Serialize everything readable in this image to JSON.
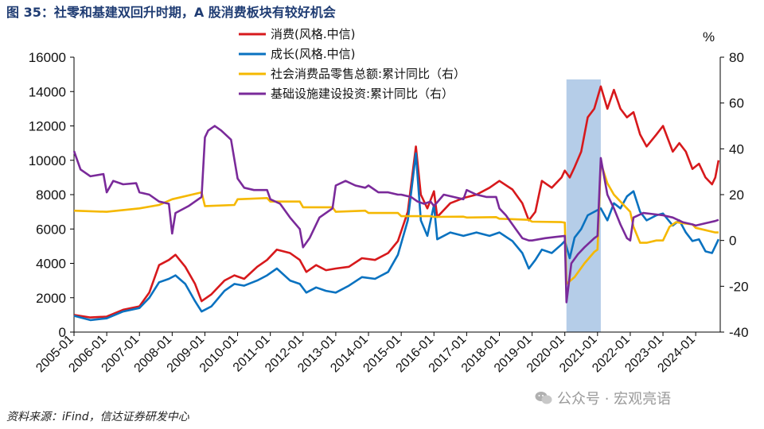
{
  "title": "图 35：社零和基建双回升时期，A 股消费板块有较好机会",
  "source": "资料来源：iFind，信达证券研发中心",
  "watermark": "公众号 · 宏观亮语",
  "chart_data": {
    "type": "line",
    "title": "图 35：社零和基建双回升时期，A 股消费板块有较好机会",
    "y_left": {
      "lim": [
        0,
        16000
      ],
      "ticks": [
        "0",
        "2000",
        "4000",
        "6000",
        "8000",
        "10000",
        "12000",
        "14000",
        "16000"
      ]
    },
    "y_right": {
      "label": "%",
      "lim": [
        -40,
        80
      ],
      "ticks": [
        "-40",
        "-20",
        "0",
        "20",
        "40",
        "60",
        "80"
      ]
    },
    "x_ticks": [
      "2005-01",
      "2006-01",
      "2007-01",
      "2008-01",
      "2009-01",
      "2010-01",
      "2011-01",
      "2012-01",
      "2013-01",
      "2014-01",
      "2015-01",
      "2016-01",
      "2017-01",
      "2018-01",
      "2019-01",
      "2020-01",
      "2021-01",
      "2022-01",
      "2023-01",
      "2024-01"
    ],
    "shaded_region": {
      "from": 2020.05,
      "to": 2021.1,
      "color": "#a8c4e4"
    },
    "series": [
      {
        "name": "消费(风格.中信)",
        "axis": "left",
        "color": "#d7191c",
        "points": [
          [
            2005.0,
            1000
          ],
          [
            2005.5,
            850
          ],
          [
            2006.0,
            900
          ],
          [
            2006.5,
            1300
          ],
          [
            2007.0,
            1500
          ],
          [
            2007.3,
            2300
          ],
          [
            2007.6,
            3900
          ],
          [
            2007.9,
            4200
          ],
          [
            2008.1,
            4500
          ],
          [
            2008.4,
            3800
          ],
          [
            2008.7,
            2800
          ],
          [
            2008.9,
            1800
          ],
          [
            2009.2,
            2200
          ],
          [
            2009.6,
            3000
          ],
          [
            2009.9,
            3300
          ],
          [
            2010.2,
            3100
          ],
          [
            2010.6,
            3800
          ],
          [
            2010.9,
            4200
          ],
          [
            2011.2,
            4800
          ],
          [
            2011.6,
            4600
          ],
          [
            2011.9,
            4200
          ],
          [
            2012.1,
            3500
          ],
          [
            2012.4,
            3900
          ],
          [
            2012.7,
            3600
          ],
          [
            2013.0,
            3700
          ],
          [
            2013.4,
            3800
          ],
          [
            2013.8,
            4300
          ],
          [
            2014.2,
            4200
          ],
          [
            2014.6,
            4600
          ],
          [
            2014.9,
            5300
          ],
          [
            2015.2,
            7000
          ],
          [
            2015.45,
            10800
          ],
          [
            2015.6,
            8000
          ],
          [
            2015.8,
            7200
          ],
          [
            2016.0,
            8200
          ],
          [
            2016.1,
            6700
          ],
          [
            2016.5,
            7500
          ],
          [
            2016.9,
            7800
          ],
          [
            2017.3,
            8000
          ],
          [
            2017.7,
            8400
          ],
          [
            2018.0,
            8800
          ],
          [
            2018.4,
            8300
          ],
          [
            2018.7,
            7500
          ],
          [
            2018.9,
            6500
          ],
          [
            2019.1,
            7000
          ],
          [
            2019.3,
            8800
          ],
          [
            2019.6,
            8400
          ],
          [
            2019.9,
            9000
          ],
          [
            2020.0,
            9400
          ],
          [
            2020.15,
            9000
          ],
          [
            2020.3,
            9600
          ],
          [
            2020.5,
            10500
          ],
          [
            2020.7,
            12500
          ],
          [
            2020.9,
            13000
          ],
          [
            2021.1,
            14300
          ],
          [
            2021.3,
            13000
          ],
          [
            2021.5,
            14100
          ],
          [
            2021.7,
            13000
          ],
          [
            2021.9,
            12500
          ],
          [
            2022.1,
            12800
          ],
          [
            2022.3,
            11500
          ],
          [
            2022.5,
            10800
          ],
          [
            2022.8,
            11500
          ],
          [
            2023.0,
            12000
          ],
          [
            2023.3,
            10500
          ],
          [
            2023.5,
            11000
          ],
          [
            2023.7,
            10500
          ],
          [
            2023.9,
            9500
          ],
          [
            2024.1,
            9800
          ],
          [
            2024.3,
            9000
          ],
          [
            2024.5,
            8600
          ],
          [
            2024.6,
            9000
          ],
          [
            2024.7,
            10000
          ]
        ]
      },
      {
        "name": "成长(风格.中信)",
        "axis": "left",
        "color": "#0a72c0",
        "points": [
          [
            2005.0,
            950
          ],
          [
            2005.5,
            700
          ],
          [
            2006.0,
            800
          ],
          [
            2006.5,
            1200
          ],
          [
            2007.0,
            1400
          ],
          [
            2007.3,
            2000
          ],
          [
            2007.6,
            2900
          ],
          [
            2007.9,
            3100
          ],
          [
            2008.1,
            3300
          ],
          [
            2008.4,
            2800
          ],
          [
            2008.7,
            1800
          ],
          [
            2008.9,
            1200
          ],
          [
            2009.2,
            1500
          ],
          [
            2009.6,
            2400
          ],
          [
            2009.9,
            2800
          ],
          [
            2010.2,
            2700
          ],
          [
            2010.6,
            3000
          ],
          [
            2010.9,
            3300
          ],
          [
            2011.2,
            3700
          ],
          [
            2011.6,
            3000
          ],
          [
            2011.9,
            2800
          ],
          [
            2012.1,
            2300
          ],
          [
            2012.4,
            2600
          ],
          [
            2012.7,
            2400
          ],
          [
            2013.0,
            2300
          ],
          [
            2013.4,
            2700
          ],
          [
            2013.8,
            3200
          ],
          [
            2014.2,
            3100
          ],
          [
            2014.6,
            3500
          ],
          [
            2014.9,
            4500
          ],
          [
            2015.2,
            6500
          ],
          [
            2015.45,
            10400
          ],
          [
            2015.6,
            6500
          ],
          [
            2015.8,
            5600
          ],
          [
            2016.0,
            7400
          ],
          [
            2016.1,
            5400
          ],
          [
            2016.5,
            5800
          ],
          [
            2016.9,
            5600
          ],
          [
            2017.3,
            5800
          ],
          [
            2017.7,
            5600
          ],
          [
            2018.0,
            5800
          ],
          [
            2018.4,
            5300
          ],
          [
            2018.7,
            4600
          ],
          [
            2018.9,
            3700
          ],
          [
            2019.1,
            4200
          ],
          [
            2019.3,
            4800
          ],
          [
            2019.6,
            4600
          ],
          [
            2019.9,
            5100
          ],
          [
            2020.0,
            5300
          ],
          [
            2020.15,
            4300
          ],
          [
            2020.3,
            5500
          ],
          [
            2020.5,
            6000
          ],
          [
            2020.7,
            6800
          ],
          [
            2020.9,
            7000
          ],
          [
            2021.1,
            7200
          ],
          [
            2021.3,
            6500
          ],
          [
            2021.5,
            7500
          ],
          [
            2021.7,
            7200
          ],
          [
            2021.9,
            7900
          ],
          [
            2022.1,
            8200
          ],
          [
            2022.3,
            7000
          ],
          [
            2022.5,
            6500
          ],
          [
            2022.8,
            6800
          ],
          [
            2023.0,
            6900
          ],
          [
            2023.3,
            6200
          ],
          [
            2023.5,
            6500
          ],
          [
            2023.7,
            5800
          ],
          [
            2023.9,
            5300
          ],
          [
            2024.1,
            5400
          ],
          [
            2024.3,
            4700
          ],
          [
            2024.5,
            4600
          ],
          [
            2024.6,
            5000
          ],
          [
            2024.7,
            5400
          ]
        ]
      },
      {
        "name": "社会消费品零售总额:累计同比（右）",
        "axis": "right",
        "color": "#f5b800",
        "points": [
          [
            2005.0,
            13
          ],
          [
            2006.0,
            12.5
          ],
          [
            2007.0,
            14
          ],
          [
            2007.6,
            15.5
          ],
          [
            2008.0,
            18
          ],
          [
            2008.9,
            21
          ],
          [
            2009.0,
            15
          ],
          [
            2009.9,
            15.5
          ],
          [
            2010.0,
            18
          ],
          [
            2010.9,
            18.5
          ],
          [
            2011.0,
            17
          ],
          [
            2011.9,
            17
          ],
          [
            2012.0,
            14.5
          ],
          [
            2012.9,
            14.5
          ],
          [
            2013.0,
            12.5
          ],
          [
            2013.9,
            13
          ],
          [
            2014.0,
            12
          ],
          [
            2014.9,
            12
          ],
          [
            2015.0,
            10.6
          ],
          [
            2015.9,
            10.6
          ],
          [
            2016.0,
            10.3
          ],
          [
            2016.9,
            10.4
          ],
          [
            2017.0,
            10
          ],
          [
            2017.9,
            10.2
          ],
          [
            2018.0,
            9.5
          ],
          [
            2018.9,
            9
          ],
          [
            2019.0,
            8.2
          ],
          [
            2019.9,
            8
          ],
          [
            2020.0,
            7.8
          ],
          [
            2020.05,
            -19
          ],
          [
            2020.3,
            -16
          ],
          [
            2020.6,
            -10
          ],
          [
            2020.9,
            -5
          ],
          [
            2021.0,
            -4
          ],
          [
            2021.1,
            34
          ],
          [
            2021.3,
            25
          ],
          [
            2021.5,
            20
          ],
          [
            2021.7,
            17
          ],
          [
            2021.9,
            14
          ],
          [
            2022.0,
            12.5
          ],
          [
            2022.1,
            6
          ],
          [
            2022.3,
            -1
          ],
          [
            2022.5,
            -1
          ],
          [
            2022.8,
            0
          ],
          [
            2023.0,
            0
          ],
          [
            2023.2,
            6
          ],
          [
            2023.4,
            8
          ],
          [
            2023.6,
            7.5
          ],
          [
            2023.9,
            7
          ],
          [
            2024.0,
            5.5
          ],
          [
            2024.3,
            4.5
          ],
          [
            2024.6,
            3.5
          ],
          [
            2024.7,
            3.5
          ]
        ]
      },
      {
        "name": "基础设施建设投资:累计同比（右）",
        "axis": "right",
        "color": "#7a2a9a",
        "points": [
          [
            2005.0,
            39
          ],
          [
            2005.2,
            31
          ],
          [
            2005.5,
            28
          ],
          [
            2005.9,
            29
          ],
          [
            2006.0,
            21
          ],
          [
            2006.2,
            26
          ],
          [
            2006.5,
            24.5
          ],
          [
            2006.9,
            25
          ],
          [
            2007.0,
            21
          ],
          [
            2007.3,
            20
          ],
          [
            2007.6,
            17
          ],
          [
            2007.9,
            16
          ],
          [
            2008.0,
            3
          ],
          [
            2008.1,
            12
          ],
          [
            2008.5,
            15
          ],
          [
            2008.9,
            19
          ],
          [
            2009.0,
            45
          ],
          [
            2009.1,
            48
          ],
          [
            2009.3,
            50
          ],
          [
            2009.5,
            48
          ],
          [
            2009.8,
            44
          ],
          [
            2010.0,
            27
          ],
          [
            2010.2,
            23
          ],
          [
            2010.5,
            22
          ],
          [
            2010.9,
            22
          ],
          [
            2011.0,
            18
          ],
          [
            2011.3,
            16
          ],
          [
            2011.6,
            10
          ],
          [
            2011.9,
            5
          ],
          [
            2012.0,
            -3
          ],
          [
            2012.2,
            1
          ],
          [
            2012.5,
            10
          ],
          [
            2012.9,
            14
          ],
          [
            2013.0,
            24
          ],
          [
            2013.3,
            26
          ],
          [
            2013.6,
            24
          ],
          [
            2013.9,
            23
          ],
          [
            2014.0,
            24
          ],
          [
            2014.3,
            21
          ],
          [
            2014.6,
            21
          ],
          [
            2014.9,
            20
          ],
          [
            2015.0,
            20
          ],
          [
            2015.3,
            19
          ],
          [
            2015.5,
            17
          ],
          [
            2015.7,
            16
          ],
          [
            2015.9,
            17
          ],
          [
            2016.0,
            15
          ],
          [
            2016.3,
            20
          ],
          [
            2016.6,
            19
          ],
          [
            2016.9,
            18
          ],
          [
            2017.0,
            22
          ],
          [
            2017.3,
            20
          ],
          [
            2017.6,
            19
          ],
          [
            2017.9,
            19
          ],
          [
            2018.0,
            14
          ],
          [
            2018.2,
            11
          ],
          [
            2018.5,
            5
          ],
          [
            2018.7,
            1
          ],
          [
            2018.9,
            0
          ],
          [
            2019.0,
            0
          ],
          [
            2019.4,
            1
          ],
          [
            2019.7,
            1.5
          ],
          [
            2020.0,
            2
          ],
          [
            2020.05,
            -27
          ],
          [
            2020.2,
            -10
          ],
          [
            2020.4,
            -6
          ],
          [
            2020.6,
            -3
          ],
          [
            2020.9,
            1
          ],
          [
            2021.0,
            2
          ],
          [
            2021.1,
            36
          ],
          [
            2021.3,
            20
          ],
          [
            2021.5,
            14
          ],
          [
            2021.7,
            7
          ],
          [
            2021.9,
            1
          ],
          [
            2022.0,
            0
          ],
          [
            2022.1,
            10
          ],
          [
            2022.4,
            12
          ],
          [
            2022.7,
            11.5
          ],
          [
            2023.0,
            11
          ],
          [
            2023.3,
            10
          ],
          [
            2023.6,
            8
          ],
          [
            2023.9,
            7
          ],
          [
            2024.0,
            6.5
          ],
          [
            2024.3,
            7.5
          ],
          [
            2024.6,
            8.5
          ],
          [
            2024.7,
            9
          ]
        ]
      }
    ]
  },
  "legend": [
    {
      "label": "消费(风格.中信)",
      "color": "#d7191c"
    },
    {
      "label": "成长(风格.中信)",
      "color": "#0a72c0"
    },
    {
      "label": "社会消费品零售总额:累计同比（右）",
      "color": "#f5b800"
    },
    {
      "label": "基础设施建设投资:累计同比（右）",
      "color": "#7a2a9a"
    }
  ]
}
